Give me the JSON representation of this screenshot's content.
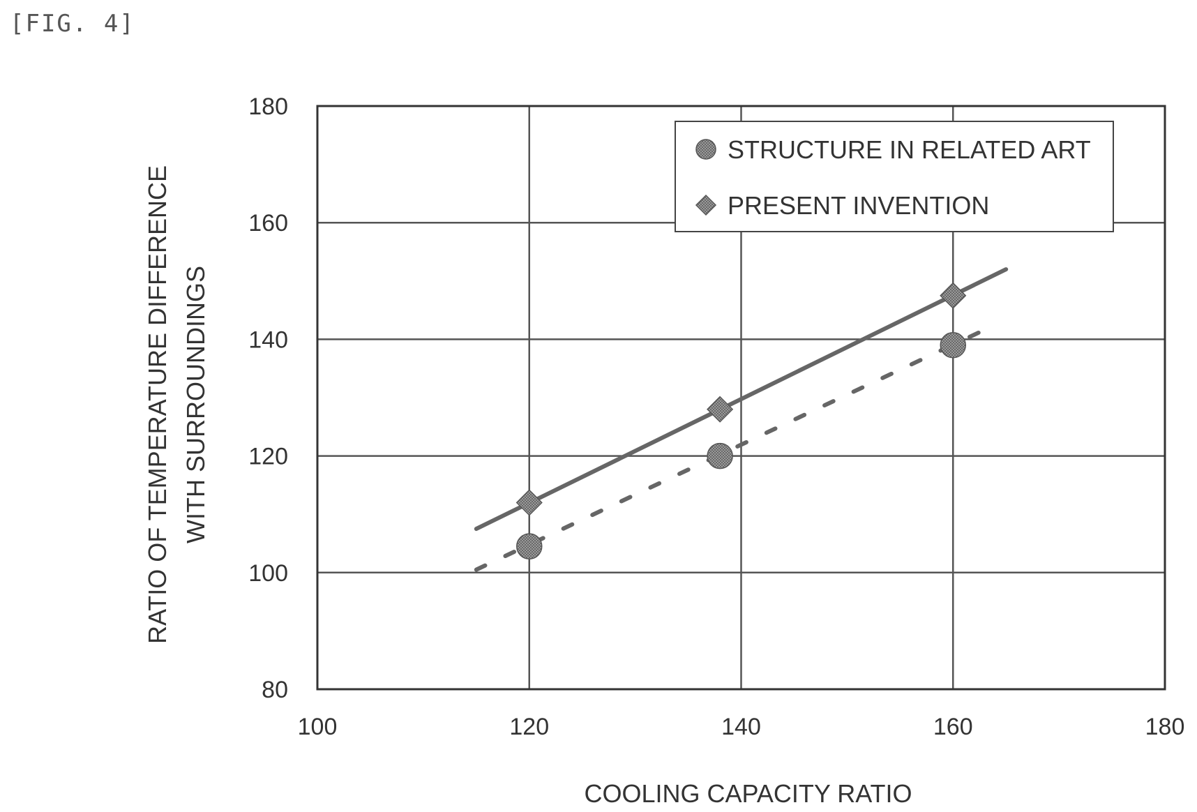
{
  "figure_label": "[FIG. 4]",
  "chart_data": {
    "type": "scatter",
    "xlabel": "COOLING CAPACITY RATIO",
    "ylabel_lines": [
      "RATIO OF TEMPERATURE DIFFERENCE",
      "WITH SURROUNDINGS"
    ],
    "xlim": [
      100,
      180
    ],
    "ylim": [
      80,
      180
    ],
    "xticks": [
      100,
      120,
      140,
      160,
      180
    ],
    "yticks": [
      80,
      100,
      120,
      140,
      160,
      180
    ],
    "grid": true,
    "legend_position": "top-right",
    "series": [
      {
        "name": "STRUCTURE IN RELATED ART",
        "marker": "circle",
        "color": "#777777",
        "x": [
          120,
          138,
          160
        ],
        "y": [
          104.5,
          120,
          139
        ],
        "trendline": {
          "style": "dashed",
          "x": [
            115,
            164
          ],
          "y": [
            100.5,
            142.5
          ]
        }
      },
      {
        "name": "PRESENT INVENTION",
        "marker": "diamond",
        "color": "#777777",
        "x": [
          120,
          138,
          160
        ],
        "y": [
          112,
          128,
          147.5
        ],
        "trendline": {
          "style": "solid",
          "x": [
            115,
            165
          ],
          "y": [
            107.5,
            152
          ]
        }
      }
    ]
  }
}
